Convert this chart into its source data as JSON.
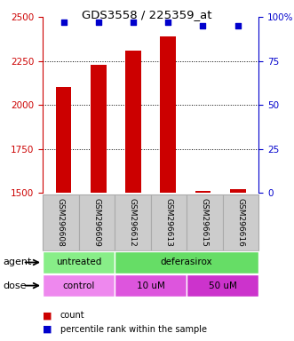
{
  "title": "GDS3558 / 225359_at",
  "samples": [
    "GSM296608",
    "GSM296609",
    "GSM296612",
    "GSM296613",
    "GSM296615",
    "GSM296616"
  ],
  "counts": [
    2100,
    2230,
    2310,
    2390,
    1510,
    1520
  ],
  "percentiles": [
    97,
    97,
    97,
    97,
    95,
    95
  ],
  "ylim_left": [
    1500,
    2500
  ],
  "ylim_right": [
    0,
    100
  ],
  "yticks_left": [
    1500,
    1750,
    2000,
    2250,
    2500
  ],
  "yticks_right": [
    0,
    25,
    50,
    75,
    100
  ],
  "bar_color": "#cc0000",
  "dot_color": "#0000cc",
  "agent_groups": [
    {
      "label": "untreated",
      "start": 0,
      "end": 2,
      "color": "#88ee88"
    },
    {
      "label": "deferasirox",
      "start": 2,
      "end": 6,
      "color": "#66dd66"
    }
  ],
  "dose_groups": [
    {
      "label": "control",
      "start": 0,
      "end": 2,
      "color": "#ee88ee"
    },
    {
      "label": "10 uM",
      "start": 2,
      "end": 4,
      "color": "#dd55dd"
    },
    {
      "label": "50 uM",
      "start": 4,
      "end": 6,
      "color": "#cc33cc"
    }
  ],
  "bar_width": 0.45,
  "left_axis_color": "#cc0000",
  "right_axis_color": "#0000cc",
  "label_box_color": "#cccccc",
  "label_box_edge": "#aaaaaa"
}
